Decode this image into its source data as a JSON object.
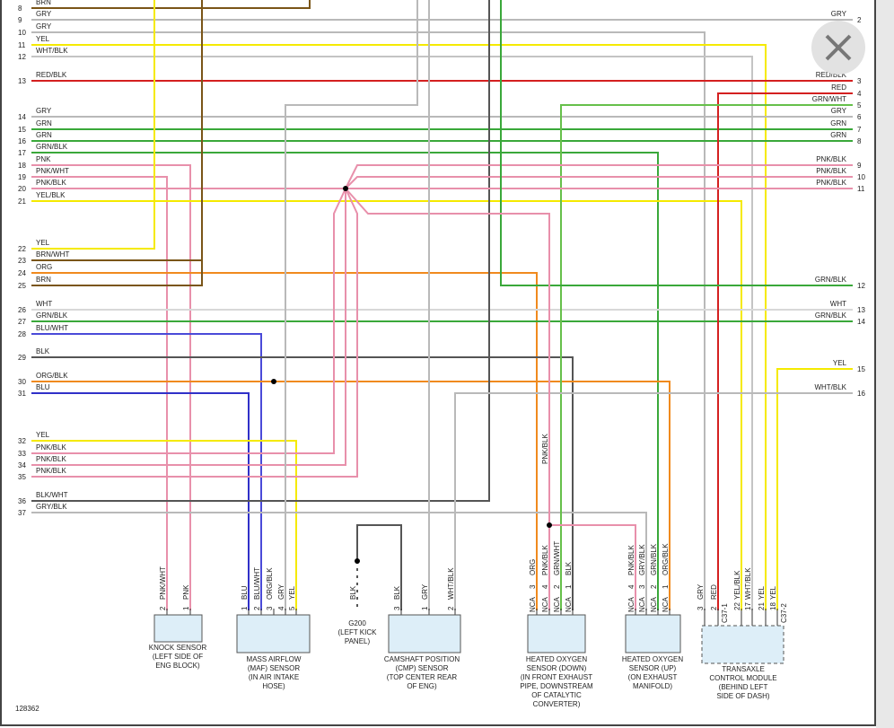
{
  "figure_id": "128362",
  "close_button": "close",
  "left_wires": [
    {
      "pin": "8",
      "label": "BRN"
    },
    {
      "pin": "9",
      "label": "GRY"
    },
    {
      "pin": "10",
      "label": "GRY"
    },
    {
      "pin": "11",
      "label": "YEL"
    },
    {
      "pin": "12",
      "label": "WHT/BLK"
    },
    {
      "pin": "13",
      "label": "RED/BLK"
    },
    {
      "pin": "14",
      "label": "GRY"
    },
    {
      "pin": "15",
      "label": "GRN"
    },
    {
      "pin": "16",
      "label": "GRN"
    },
    {
      "pin": "17",
      "label": "GRN/BLK"
    },
    {
      "pin": "18",
      "label": "PNK"
    },
    {
      "pin": "19",
      "label": "PNK/WHT"
    },
    {
      "pin": "20",
      "label": "PNK/BLK"
    },
    {
      "pin": "21",
      "label": "YEL/BLK"
    },
    {
      "pin": "22",
      "label": "YEL"
    },
    {
      "pin": "23",
      "label": "BRN/WHT"
    },
    {
      "pin": "24",
      "label": "ORG"
    },
    {
      "pin": "25",
      "label": "BRN"
    },
    {
      "pin": "26",
      "label": "WHT"
    },
    {
      "pin": "27",
      "label": "GRN/BLK"
    },
    {
      "pin": "28",
      "label": "BLU/WHT"
    },
    {
      "pin": "29",
      "label": "BLK"
    },
    {
      "pin": "30",
      "label": "ORG/BLK"
    },
    {
      "pin": "31",
      "label": "BLU"
    },
    {
      "pin": "32",
      "label": "YEL"
    },
    {
      "pin": "33",
      "label": "PNK/BLK"
    },
    {
      "pin": "34",
      "label": "PNK/BLK"
    },
    {
      "pin": "35",
      "label": "PNK/BLK"
    },
    {
      "pin": "36",
      "label": "BLK/WHT"
    },
    {
      "pin": "37",
      "label": "GRY/BLK"
    }
  ],
  "right_wires": [
    {
      "pin": "2",
      "label": "GRY"
    },
    {
      "pin": "3",
      "label": "RED/BLK"
    },
    {
      "pin": "4",
      "label": "RED"
    },
    {
      "pin": "5",
      "label": "GRN/WHT"
    },
    {
      "pin": "6",
      "label": "GRY"
    },
    {
      "pin": "7",
      "label": "GRN"
    },
    {
      "pin": "8",
      "label": "GRN"
    },
    {
      "pin": "9",
      "label": "PNK/BLK"
    },
    {
      "pin": "10",
      "label": "PNK/BLK"
    },
    {
      "pin": "11",
      "label": "PNK/BLK"
    },
    {
      "pin": "12",
      "label": "GRN/BLK"
    },
    {
      "pin": "13",
      "label": "WHT"
    },
    {
      "pin": "14",
      "label": "GRN/BLK"
    },
    {
      "pin": "15",
      "label": "YEL"
    },
    {
      "pin": "16",
      "label": "WHT/BLK"
    }
  ],
  "mid_label": "PNK/BLK",
  "components": [
    {
      "name_lines": [
        "KNOCK SENSOR",
        "(LEFT SIDE OF",
        "ENG BLOCK)"
      ],
      "pins": [
        {
          "num": "2",
          "label": "PNK/WHT"
        },
        {
          "num": "1",
          "label": "PNK"
        }
      ]
    },
    {
      "name_lines": [
        "MASS AIRFLOW",
        "(MAF) SENSOR",
        "(IN AIR INTAKE",
        "HOSE)"
      ],
      "pins": [
        {
          "num": "1",
          "label": "BLU"
        },
        {
          "num": "2",
          "label": "BLU/WHT"
        },
        {
          "num": "3",
          "label": "ORG/BLK"
        },
        {
          "num": "4",
          "label": "GRY"
        },
        {
          "num": "5",
          "label": "YEL"
        }
      ]
    },
    {
      "name_lines": [
        "G200",
        "(LEFT KICK",
        "PANEL)"
      ],
      "pins": [
        {
          "label": "BLK"
        }
      ]
    },
    {
      "name_lines": [
        "CAMSHAFT POSITION",
        "(CMP) SENSOR",
        "(TOP CENTER REAR",
        "OF ENG)"
      ],
      "pins": [
        {
          "num": "3",
          "label": "BLK"
        },
        {
          "num": "1",
          "label": "GRY"
        },
        {
          "num": "2",
          "label": "WHT/BLK"
        }
      ]
    },
    {
      "name_lines": [
        "HEATED OXYGEN",
        "SENSOR (DOWN)",
        "(IN FRONT EXHAUST",
        "PIPE, DOWNSTREAM",
        "OF CATALYTIC",
        "CONVERTER)"
      ],
      "pins": [
        {
          "num": "3",
          "label": "ORG",
          "nca": "NCA"
        },
        {
          "num": "4",
          "label": "PNK/BLK",
          "nca": "NCA"
        },
        {
          "num": "2",
          "label": "GRN/WHT",
          "nca": "NCA"
        },
        {
          "num": "1",
          "label": "BLK",
          "nca": "NCA"
        }
      ]
    },
    {
      "name_lines": [
        "HEATED OXYGEN",
        "SENSOR (UP)",
        "(ON EXHAUST",
        "MANIFOLD)"
      ],
      "pins": [
        {
          "num": "4",
          "label": "PNK/BLK",
          "nca": "NCA"
        },
        {
          "num": "3",
          "label": "GRY/BLK",
          "nca": "NCA"
        },
        {
          "num": "2",
          "label": "GRN/BLK",
          "nca": "NCA"
        },
        {
          "num": "1",
          "label": "ORG/BLK",
          "nca": "NCA"
        }
      ]
    },
    {
      "name_lines": [
        "TRANSAXLE",
        "CONTROL MODULE",
        "(BEHIND LEFT",
        "SIDE OF DASH)"
      ],
      "pins": [
        {
          "num": "3",
          "label": "GRY"
        },
        {
          "num": "2",
          "label": "RED"
        },
        {
          "num": "22",
          "label": "YEL/BLK"
        },
        {
          "num": "17",
          "label": "WHT/BLK"
        },
        {
          "num": "21",
          "label": "YEL"
        },
        {
          "num": "18",
          "label": "YEL"
        }
      ],
      "connectors": [
        "C37-1",
        "C37-2"
      ]
    }
  ]
}
